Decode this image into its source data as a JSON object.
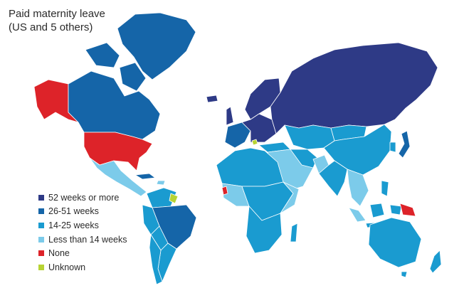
{
  "title": {
    "line1": "Paid maternity leave",
    "line2": "(US and 5 others)"
  },
  "colors": {
    "c52": "#2e3a86",
    "c26": "#1565a8",
    "c14": "#1a9bd0",
    "c0": "#7ccbea",
    "none": "#dd2329",
    "unknown": "#b7d333",
    "border": "#ffffff"
  },
  "legend": [
    {
      "label": "52 weeks or more",
      "color": "#2e3a86"
    },
    {
      "label": "26-51 weeks",
      "color": "#1565a8"
    },
    {
      "label": "14-25 weeks",
      "color": "#1a9bd0"
    },
    {
      "label": "Less than 14 weeks",
      "color": "#7ccbea"
    },
    {
      "label": "None",
      "color": "#dd2329"
    },
    {
      "label": "Unknown",
      "color": "#b7d333"
    }
  ]
}
